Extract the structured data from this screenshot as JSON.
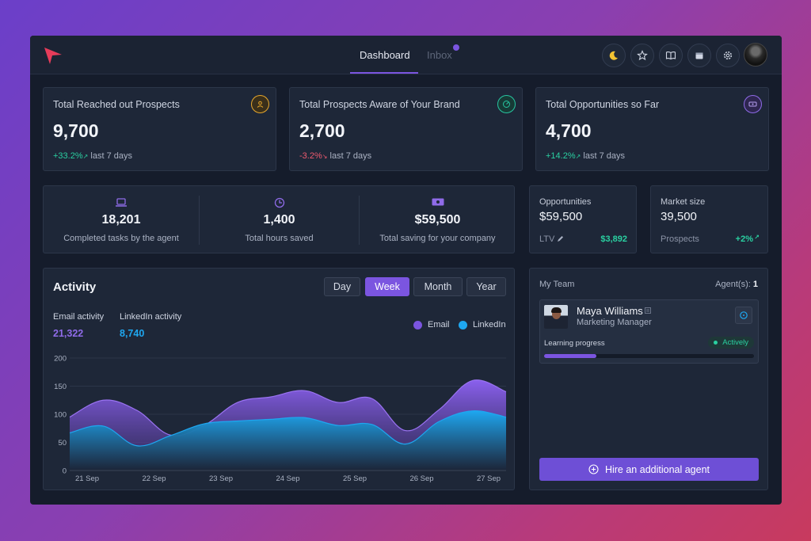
{
  "nav": {
    "tabs": [
      {
        "label": "Dashboard",
        "active": true
      },
      {
        "label": "Inbox",
        "active": false
      }
    ],
    "icons": [
      "moon-icon",
      "star-icon",
      "book-icon",
      "calendar-icon",
      "gear-icon"
    ]
  },
  "stats": [
    {
      "title": "Total Reached out Prospects",
      "value": "9,700",
      "delta": "+33.2%",
      "period": "last 7 days",
      "trend": "up",
      "icon": "user-circle-icon",
      "color": "#e7a72c"
    },
    {
      "title": "Total Prospects Aware of Your Brand",
      "value": "2,700",
      "delta": "-3.2%",
      "period": "last 7 days",
      "trend": "down",
      "icon": "gauge-icon",
      "color": "#27c5a0"
    },
    {
      "title": "Total Opportunities so Far",
      "value": "4,700",
      "delta": "+14.2%",
      "period": "last 7 days",
      "trend": "up",
      "icon": "ticket-icon",
      "color": "#8f6be8"
    }
  ],
  "summary": [
    {
      "value": "18,201",
      "label": "Completed tasks by the agent",
      "icon": "laptop-icon"
    },
    {
      "value": "1,400",
      "label": "Total hours saved",
      "icon": "clock-icon"
    },
    {
      "value": "$59,500",
      "label": "Total saving for your company",
      "icon": "money-icon"
    }
  ],
  "opportunities": {
    "label": "Opportunities",
    "value": "$59,500",
    "sub_label": "LTV",
    "sub_value": "$3,892"
  },
  "market": {
    "label": "Market size",
    "value": "39,500",
    "sub_label": "Prospects",
    "sub_value": "+2%"
  },
  "activity": {
    "title": "Activity",
    "ranges": [
      {
        "label": "Day",
        "active": false
      },
      {
        "label": "Week",
        "active": true
      },
      {
        "label": "Month",
        "active": false
      },
      {
        "label": "Year",
        "active": false
      }
    ],
    "email_label": "Email activity",
    "email_value": "21,322",
    "linkedin_label": "LinkedIn activity",
    "linkedin_value": "8,740",
    "colors": {
      "email": "#7b55e0",
      "linkedin": "#1ea7f0"
    }
  },
  "chart_data": {
    "type": "area",
    "x": [
      "21 Sep",
      "22 Sep",
      "23 Sep",
      "24 Sep",
      "25 Sep",
      "26 Sep",
      "27 Sep"
    ],
    "ylim": [
      0,
      200
    ],
    "yticks": [
      0,
      50,
      100,
      150,
      200
    ],
    "grid": true,
    "legend_position": "top-right",
    "series": [
      {
        "name": "Email",
        "x": [
          "21 Sep",
          "21 Sep",
          "22 Sep",
          "22 Sep",
          "23 Sep",
          "23 Sep",
          "24 Sep",
          "24 Sep",
          "25 Sep",
          "25 Sep",
          "26 Sep",
          "26 Sep",
          "27 Sep",
          "27 Sep"
        ],
        "values": [
          95,
          125,
          107,
          63,
          80,
          121,
          131,
          142,
          121,
          128,
          71,
          108,
          160,
          140
        ]
      },
      {
        "name": "LinkedIn",
        "x": [
          "21 Sep",
          "21 Sep",
          "22 Sep",
          "22 Sep",
          "23 Sep",
          "23 Sep",
          "24 Sep",
          "24 Sep",
          "25 Sep",
          "25 Sep",
          "26 Sep",
          "26 Sep",
          "27 Sep",
          "27 Sep"
        ],
        "values": [
          67,
          79,
          44,
          62,
          83,
          88,
          91,
          94,
          80,
          82,
          47,
          87,
          106,
          95
        ]
      }
    ]
  },
  "team": {
    "title": "My Team",
    "agents_label": "Agent(s):",
    "agents_count": "1",
    "member": {
      "name": "Maya Williams",
      "role": "Marketing Manager",
      "progress_label": "Learning progress",
      "status": "Actively",
      "progress": 0.25
    },
    "hire_label": "Hire an additional agent"
  }
}
